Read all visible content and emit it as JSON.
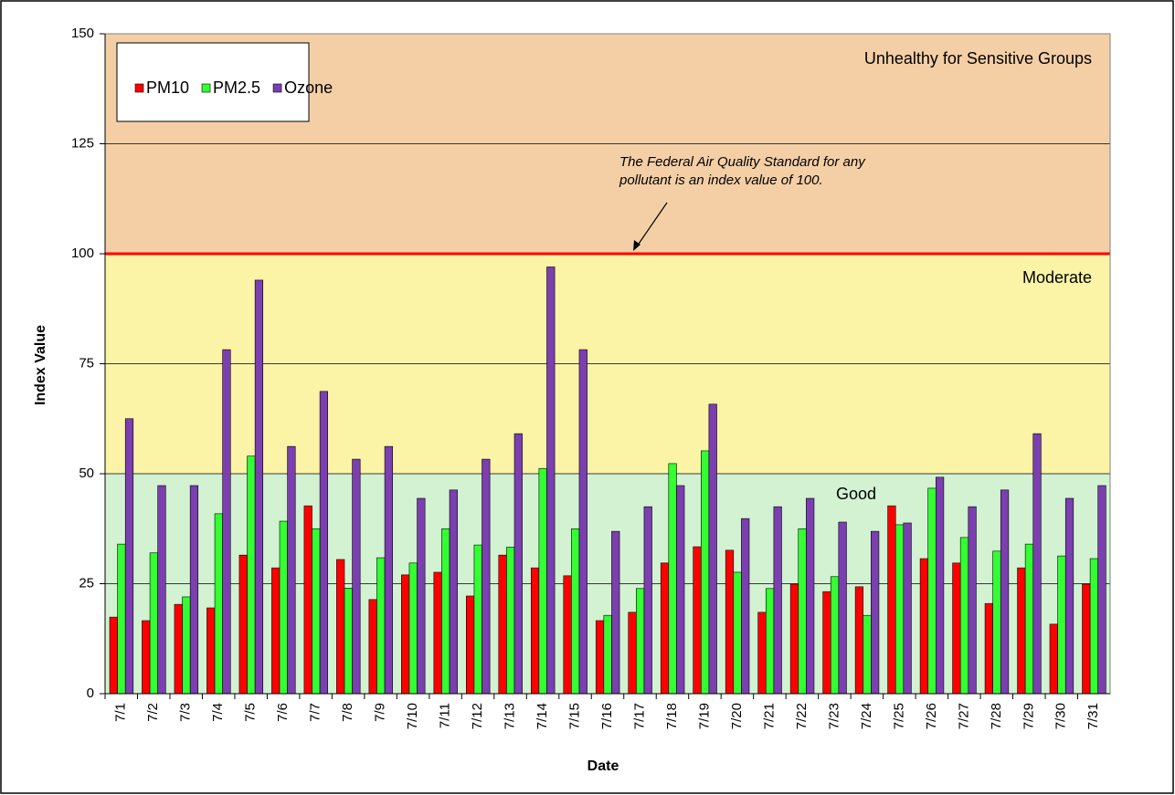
{
  "chart_data": {
    "type": "bar",
    "x_label": "Date",
    "y_label": "Index Value",
    "categories": [
      "7/1",
      "7/2",
      "7/3",
      "7/4",
      "7/5",
      "7/6",
      "7/7",
      "7/8",
      "7/9",
      "7/10",
      "7/11",
      "7/12",
      "7/13",
      "7/14",
      "7/15",
      "7/16",
      "7/17",
      "7/18",
      "7/19",
      "7/20",
      "7/21",
      "7/22",
      "7/23",
      "7/24",
      "7/25",
      "7/26",
      "7/27",
      "7/28",
      "7/29",
      "7/30",
      "7/31"
    ],
    "series": [
      {
        "name": "PM10",
        "color": "#ff0000",
        "values": [
          17.4,
          16.6,
          20.3,
          19.5,
          31.5,
          28.6,
          42.7,
          30.5,
          21.4,
          27,
          27.6,
          22.2,
          31.5,
          28.6,
          26.8,
          16.6,
          18.5,
          29.7,
          33.4,
          32.6,
          18.5,
          24.9,
          23.2,
          24.3,
          42.7,
          30.7,
          29.7,
          20.5,
          28.6,
          15.8,
          24.9
        ]
      },
      {
        "name": "PM2.5",
        "color": "#33ff33",
        "values": [
          34,
          32,
          22,
          40.9,
          54,
          39.2,
          37.5,
          24,
          30.9,
          29.7,
          37.5,
          33.8,
          33.3,
          51.2,
          37.5,
          17.8,
          23.9,
          52.3,
          55.2,
          27.6,
          23.9,
          37.5,
          26.6,
          17.8,
          38.4,
          46.7,
          35.5,
          32.4,
          34,
          31.3,
          30.7
        ]
      },
      {
        "name": "Ozone",
        "color": "#7b3fb0",
        "values": [
          62.5,
          47.3,
          47.3,
          78.2,
          94,
          56.2,
          68.7,
          53.3,
          56.2,
          44.4,
          46.3,
          53.3,
          59.1,
          97,
          78.2,
          36.9,
          42.5,
          47.3,
          65.8,
          39.8,
          42.5,
          44.4,
          39,
          36.9,
          38.8,
          49.2,
          42.5,
          46.3,
          59.1,
          44.4,
          47.3
        ]
      }
    ],
    "ylim": [
      0,
      150
    ],
    "yticks": [
      0,
      25,
      50,
      75,
      100,
      125,
      150
    ],
    "grid": true,
    "legend": "top-left",
    "bands": [
      {
        "label": "Good",
        "from": 0,
        "to": 50,
        "color": "#d2f2d2",
        "label_color": "#009900"
      },
      {
        "label": "Moderate",
        "from": 50,
        "to": 100,
        "color": "#fbf4a6",
        "label_color": "#ff9900"
      },
      {
        "label": "Unhealthy for Sensitive Groups",
        "from": 100,
        "to": 150,
        "color": "#f4cfa6",
        "label_color": "#ff0000"
      }
    ],
    "standard_line": {
      "value": 100,
      "color": "#ff0000"
    },
    "annotation": [
      "The Federal Air Quality Standard for any",
      "pollutant is an index value of 100."
    ]
  }
}
